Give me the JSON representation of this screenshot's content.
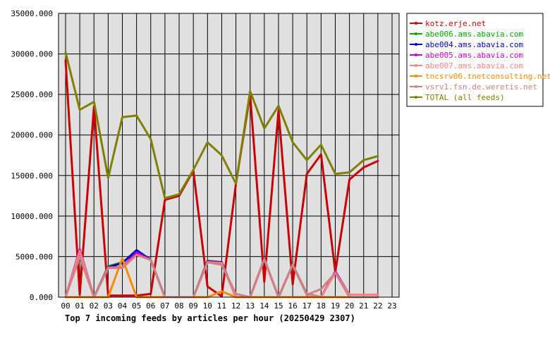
{
  "chart_data": {
    "type": "line",
    "title": "Top 7 incoming feeds by articles per hour (20250429 2307)",
    "xlabel": "",
    "ylabel": "",
    "ylim": [
      0,
      35000
    ],
    "y_tick_labels": [
      "0.000",
      "5000.000",
      "10000.000",
      "15000.000",
      "20000.000",
      "25000.000",
      "30000.000",
      "35000.000"
    ],
    "categories": [
      "00",
      "01",
      "02",
      "03",
      "04",
      "05",
      "06",
      "07",
      "08",
      "09",
      "10",
      "11",
      "12",
      "13",
      "14",
      "15",
      "16",
      "17",
      "18",
      "19",
      "20",
      "21",
      "22",
      "23"
    ],
    "grid": true,
    "legend_position": "top-right (outside plot)",
    "series": [
      {
        "name": "kotz.erje.net",
        "color": "#cc0000",
        "values": [
          29200,
          300,
          23500,
          200,
          200,
          200,
          400,
          12000,
          12500,
          15600,
          1300,
          100,
          14000,
          25000,
          1900,
          23000,
          1600,
          15200,
          17600,
          3100,
          14500,
          16000,
          16800,
          null
        ]
      },
      {
        "name": "abe006.ams.abavia.com",
        "color": "#00aa00",
        "values": [
          0,
          5800,
          0,
          3800,
          4300,
          5600,
          4600,
          0,
          0,
          0,
          4500,
          4300,
          0,
          0,
          4700,
          0,
          4000,
          400,
          0,
          3100,
          300,
          300,
          300,
          null
        ]
      },
      {
        "name": "abe004.ams.abavia.com",
        "color": "#0000cc",
        "values": [
          0,
          5800,
          0,
          3700,
          4200,
          5800,
          4600,
          0,
          0,
          0,
          4400,
          4300,
          0,
          0,
          4700,
          0,
          4000,
          300,
          0,
          3100,
          300,
          300,
          300,
          null
        ]
      },
      {
        "name": "abe005.ams.abavia.com",
        "color": "#cc00cc",
        "values": [
          0,
          5900,
          0,
          3700,
          3700,
          5500,
          4600,
          0,
          0,
          0,
          4400,
          4200,
          0,
          0,
          4700,
          0,
          4000,
          300,
          0,
          3200,
          300,
          300,
          300,
          null
        ]
      },
      {
        "name": "abe007.ams.abavia.com",
        "color": "#ff8080",
        "values": [
          0,
          5700,
          0,
          3600,
          3700,
          5200,
          4600,
          0,
          0,
          0,
          4300,
          4200,
          0,
          0,
          4700,
          0,
          4000,
          300,
          0,
          3000,
          300,
          300,
          300,
          null
        ]
      },
      {
        "name": "tncsrv06.tnetconsulting.net",
        "color": "#ff8800",
        "values": [
          0,
          0,
          0,
          0,
          4800,
          0,
          0,
          0,
          0,
          0,
          0,
          700,
          0,
          0,
          0,
          0,
          0,
          0,
          0,
          0,
          0,
          0,
          0,
          null
        ]
      },
      {
        "name": "vsrv1.fsn.de.weretis.net",
        "color": "#d08080",
        "values": [
          0,
          5000,
          0,
          3600,
          3600,
          5200,
          4600,
          0,
          0,
          0,
          4300,
          4000,
          400,
          0,
          4700,
          0,
          4000,
          300,
          1000,
          3000,
          0,
          0,
          0,
          null
        ]
      },
      {
        "name": "TOTAL (all feeds)",
        "color": "#808000",
        "values": [
          30200,
          23100,
          24100,
          14700,
          22200,
          22400,
          19500,
          12200,
          12700,
          15700,
          19100,
          17500,
          14000,
          25400,
          20800,
          23600,
          19100,
          16900,
          18800,
          15200,
          15400,
          16900,
          17400,
          null
        ]
      }
    ]
  }
}
